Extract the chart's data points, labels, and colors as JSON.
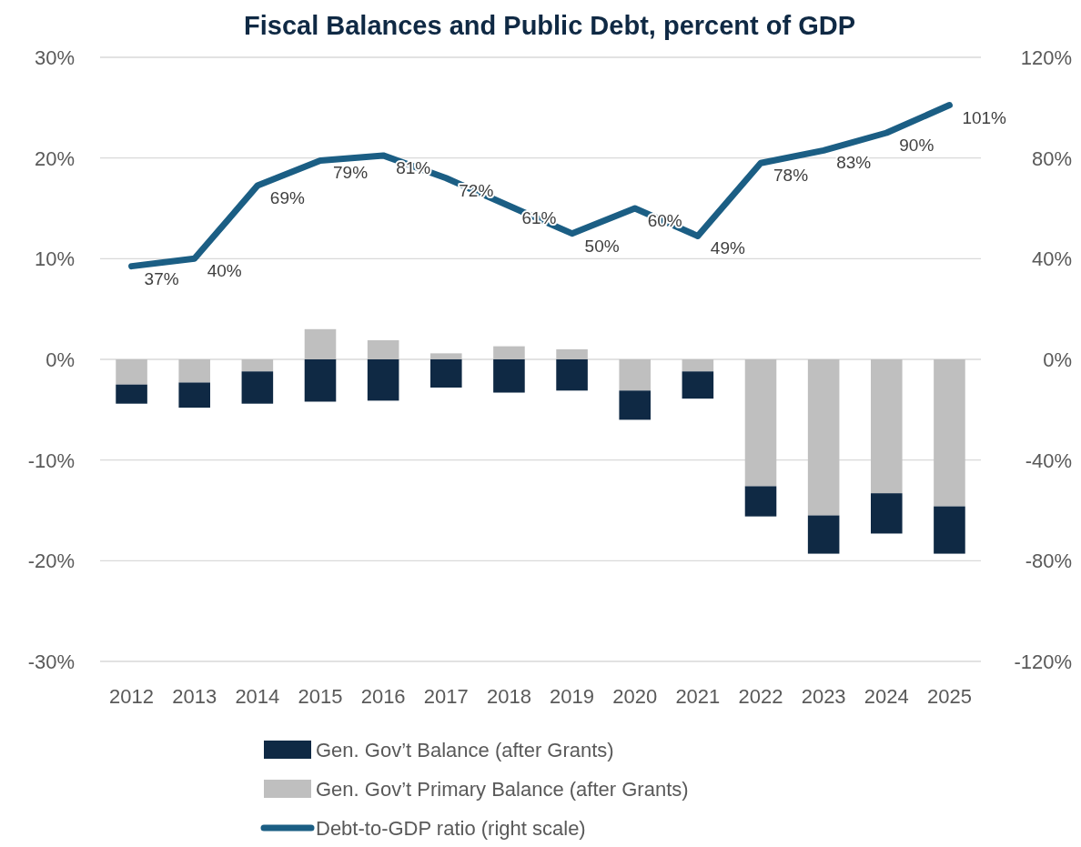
{
  "chart_data": {
    "type": "bar",
    "title": "Fiscal Balances and Public Debt, percent of GDP",
    "categories": [
      "2012",
      "2013",
      "2014",
      "2015",
      "2016",
      "2017",
      "2018",
      "2019",
      "2020",
      "2021",
      "2022",
      "2023",
      "2024",
      "2025"
    ],
    "stacked": true,
    "series": [
      {
        "name": "Gen. Gov’t Primary Balance (after Grants)",
        "color": "#bfbfbf",
        "values": [
          -2.5,
          -2.3,
          -1.2,
          3.0,
          1.9,
          0.6,
          1.3,
          1.0,
          -3.1,
          -1.2,
          -12.6,
          -15.5,
          -13.3,
          -14.6
        ]
      },
      {
        "name": "Gen. Gov’t Balance (after Grants)",
        "color": "#0f2944",
        "values": [
          -1.9,
          -2.5,
          -3.2,
          -4.2,
          -4.1,
          -2.8,
          -3.3,
          -3.1,
          -2.9,
          -2.7,
          -3.0,
          -3.8,
          -4.0,
          -4.7
        ]
      },
      {
        "name": "Debt-to-GDP ratio (right scale)",
        "type": "line",
        "axis": "y2",
        "color": "#1b5e84",
        "data_labels": true,
        "value_labels": [
          "37%",
          "40%",
          "69%",
          "79%",
          "81%",
          "72%",
          "61%",
          "50%",
          "60%",
          "49%",
          "78%",
          "83%",
          "90%",
          "101%"
        ],
        "values": [
          37,
          40,
          69,
          79,
          81,
          72,
          61,
          50,
          60,
          49,
          78,
          83,
          90,
          101
        ]
      }
    ],
    "ylim": [
      -30,
      30
    ],
    "yticks": [
      {
        "value": -30,
        "label": "-30%"
      },
      {
        "value": -20,
        "label": "-20%"
      },
      {
        "value": -10,
        "label": "-10%"
      },
      {
        "value": 0,
        "label": "0%"
      },
      {
        "value": 10,
        "label": "10%"
      },
      {
        "value": 20,
        "label": "20%"
      },
      {
        "value": 30,
        "label": "30%"
      }
    ],
    "y2lim": [
      -120,
      120
    ],
    "y2ticks": [
      {
        "value": -120,
        "label": "-120%"
      },
      {
        "value": -80,
        "label": "-80%"
      },
      {
        "value": -40,
        "label": "-40%"
      },
      {
        "value": 0,
        "label": "0%"
      },
      {
        "value": 40,
        "label": "40%"
      },
      {
        "value": 80,
        "label": "80%"
      },
      {
        "value": 120,
        "label": "120%"
      }
    ],
    "grid": "y",
    "legend": "bottom"
  }
}
